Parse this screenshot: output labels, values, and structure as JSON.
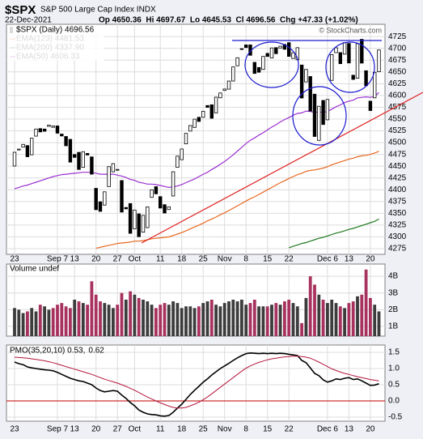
{
  "header": {
    "symbol": "$SPX",
    "name": "S&P 500 Large Cap Index INDX",
    "date": "22-Dec-2021",
    "quote": "Op 4650.36  Hi 4697.67  Lo 4645.53  Cl 4696.56  Chg +47.33 (+1.02%)",
    "copyright": "© StockCharts.com"
  },
  "chart_data": {
    "type": "candlestick",
    "legend": "$SPX (Daily) 4696.56",
    "color": "#000000",
    "grid": true,
    "categories": [
      "23",
      null,
      null,
      null,
      null,
      null,
      null,
      null,
      null,
      null,
      "Sep 7",
      null,
      null,
      null,
      "13",
      null,
      null,
      null,
      null,
      "20",
      null,
      null,
      null,
      null,
      "27",
      null,
      null,
      null,
      "Oct",
      null,
      null,
      null,
      null,
      null,
      "11",
      null,
      null,
      null,
      null,
      "18",
      null,
      null,
      null,
      null,
      "25",
      null,
      null,
      null,
      null,
      "Nov",
      null,
      null,
      null,
      null,
      "8",
      null,
      null,
      null,
      null,
      "15",
      null,
      null,
      null,
      null,
      "22",
      null,
      null,
      null,
      null,
      null,
      null,
      null,
      null,
      "Dec 6",
      null,
      null,
      null,
      null,
      "13",
      null,
      null,
      null,
      null,
      "20",
      null,
      null
    ],
    "open": [
      4450.29,
      4484.4,
      4490.45,
      4493.75,
      4474.1,
      4513.76,
      4529.75,
      4528.8,
      4534.48,
      4532.42,
      4535.38,
      4518.09,
      4513.02,
      4506.92,
      4474.81,
      4479.33,
      4447.49,
      4477.09,
      4469.74,
      4402.95,
      4374.45,
      4367.43,
      4406.75,
      4438.04,
      4442.24,
      4419.54,
      4362.41,
      4370.67,
      4317.16,
      4348.84,
      4309.87,
      4319.57,
      4383.73,
      4406.51,
      4385.44,
      4368.31,
      4358.01,
      4386.75,
      4447.69,
      4463.72,
      4497.34,
      4524.42,
      4532.24,
      4553.69,
      4553.69,
      4578.69,
      4580.22,
      4562.84,
      4595.06,
      4610.62,
      4613.34,
      4630.65,
      4662.93,
      4699.26,
      4707.25,
      4707.25,
      4670.26,
      4659.39,
      4655.24,
      4689.3,
      4679.42,
      4701.5,
      4700.72,
      4708.44,
      4712,
      4678.48,
      4675.78,
      4664.63,
      4628.75,
      4640.25,
      4602.82,
      4504.73,
      4589.49,
      4548.37,
      4631.97,
      4690.86,
      4691,
      4687.64,
      4710.3,
      4642.99,
      4636.46,
      4719.13,
      4652.5,
      4587.9,
      4594.96,
      4650.36
    ],
    "close": [
      4479.53,
      4486.23,
      4496.19,
      4470,
      4509.37,
      4528.79,
      4522.68,
      4524.09,
      4536.95,
      4535.43,
      4520.03,
      4514.07,
      4493.28,
      4458.58,
      4468.73,
      4443.05,
      4480.7,
      4473.75,
      4432.99,
      4357.73,
      4354.19,
      4395.64,
      4448.98,
      4455.48,
      4443.11,
      4352.63,
      4359.46,
      4307.54,
      4357.04,
      4300.46,
      4345.72,
      4363.55,
      4399.76,
      4391.34,
      4361.19,
      4350.65,
      4363.8,
      4438.26,
      4471.37,
      4486.46,
      4519.63,
      4536.19,
      4549.78,
      4544.9,
      4566.48,
      4574.79,
      4551.68,
      4596.42,
      4605.38,
      4613.67,
      4630.65,
      4660.57,
      4680.06,
      4697.53,
      4701.7,
      4685.25,
      4646.71,
      4649.27,
      4682.85,
      4682.8,
      4700.9,
      4688.67,
      4704.54,
      4697.96,
      4682.94,
      4690.7,
      4701.46,
      4594.62,
      4655.27,
      4567,
      4513.04,
      4577.1,
      4538.43,
      4591.67,
      4686.75,
      4701.21,
      4667.45,
      4712.02,
      4668.97,
      4634.09,
      4709.85,
      4668.67,
      4620.64,
      4568.02,
      4649.23,
      4696.56
    ],
    "ylim": [
      4263,
      4751
    ],
    "yticks": [
      4275,
      4300,
      4325,
      4350,
      4375,
      4400,
      4425,
      4450,
      4475,
      4500,
      4525,
      4550,
      4575,
      4600,
      4625,
      4650,
      4675,
      4700,
      4725
    ],
    "series": [
      {
        "name": "EMA(123) 4481.53",
        "color": "#e8671e",
        "values": [
          null,
          null,
          null,
          null,
          null,
          null,
          null,
          null,
          null,
          null,
          null,
          null,
          null,
          null,
          null,
          null,
          null,
          null,
          null,
          4276,
          4278,
          4280,
          4282,
          4284,
          4286,
          4287,
          4288,
          4289,
          4291,
          4291,
          4292,
          4294,
          4296,
          4297,
          4298,
          4299,
          4300,
          4303,
          4306,
          4309,
          4313,
          4317,
          4321,
          4325,
          4329,
          4334,
          4338,
          4342,
          4347,
          4351,
          4356,
          4361,
          4366,
          4371,
          4376,
          4381,
          4385,
          4390,
          4395,
          4400,
          4405,
          4410,
          4415,
          4419,
          4424,
          4428,
          4432,
          4435,
          4439,
          4441,
          4442,
          4444,
          4446,
          4449,
          4453,
          4456,
          4459,
          4462,
          4465,
          4467,
          4470,
          4472,
          4473,
          4475,
          4478,
          4481.53
        ]
      },
      {
        "name": "EMA(200) 4337.90",
        "color": "#1f7a1f",
        "values": [
          null,
          null,
          null,
          null,
          null,
          null,
          null,
          null,
          null,
          null,
          null,
          null,
          null,
          null,
          null,
          null,
          null,
          null,
          null,
          null,
          null,
          null,
          null,
          null,
          null,
          null,
          null,
          null,
          null,
          null,
          null,
          null,
          null,
          null,
          null,
          null,
          null,
          null,
          null,
          null,
          null,
          null,
          null,
          null,
          null,
          null,
          null,
          null,
          null,
          null,
          null,
          null,
          null,
          null,
          null,
          null,
          null,
          null,
          null,
          null,
          null,
          null,
          null,
          null,
          4277,
          4280,
          4283,
          4286,
          4288,
          4291,
          4294,
          4297,
          4299,
          4302,
          4305,
          4308,
          4310,
          4313,
          4316,
          4318,
          4321,
          4324,
          4327,
          4330,
          4333,
          4337.9
        ]
      },
      {
        "name": "EMA(50) 4606.33",
        "color": "#9b30d0",
        "values": [
          4402,
          4405,
          4408,
          4410,
          4413,
          4416,
          4419,
          4422,
          4425,
          4428,
          4430,
          4432,
          4433,
          4434,
          4435,
          4436,
          4437,
          4437,
          4437,
          4435,
          4433,
          4433,
          4433,
          4433,
          4431,
          4429,
          4426,
          4422,
          4420,
          4416,
          4414,
          4412,
          4412,
          4411,
          4409,
          4407,
          4405,
          4406,
          4408,
          4411,
          4415,
          4419,
          4423,
          4428,
          4433,
          4437,
          4443,
          4448,
          4454,
          4460,
          4467,
          4474,
          4482,
          4490,
          4498,
          4505,
          4510,
          4516,
          4521,
          4527,
          4533,
          4538,
          4544,
          4549,
          4553,
          4558,
          4562,
          4563,
          4567,
          4566,
          4564,
          4565,
          4564,
          4566,
          4571,
          4576,
          4580,
          4585,
          4588,
          4590,
          4595,
          4596,
          4597,
          4596,
          4598,
          4606.33
        ]
      }
    ],
    "volume": {
      "name": "Volume undef",
      "colors": {
        "up": "#3c3c3c",
        "down": "#a8325e"
      },
      "values": [
        2.1,
        2.0,
        1.8,
        1.9,
        2.1,
        1.9,
        2.3,
        2.2,
        2.0,
        2.1,
        2.3,
        2.4,
        2.2,
        2.1,
        2.6,
        2.5,
        2.4,
        2.3,
        3.7,
        2.9,
        2.5,
        2.4,
        2.3,
        2.1,
        2.3,
        3.0,
        2.6,
        3.1,
        2.9,
        2.7,
        2.6,
        2.5,
        2.3,
        2.1,
        2.3,
        2.4,
        2.3,
        2.5,
        2.4,
        2.1,
        2.2,
        2.2,
        2.1,
        2.2,
        2.4,
        2.5,
        2.6,
        2.3,
        2.2,
        2.4,
        2.5,
        2.6,
        2.5,
        2.6,
        2.3,
        2.4,
        2.6,
        2.2,
        2.2,
        2.2,
        2.3,
        2.4,
        2.3,
        2.5,
        2.6,
        2.4,
        2.2,
        1.2,
        2.7,
        4.0,
        3.5,
        2.9,
        2.6,
        2.4,
        2.6,
        2.4,
        2.2,
        2.1,
        2.4,
        2.5,
        2.8,
        2.9,
        4.4,
        2.7,
        2.3,
        1.9
      ],
      "ylim": [
        0.42,
        4.73
      ],
      "yticks": [
        {
          "value": 1,
          "label": "1B"
        },
        {
          "value": 2,
          "label": "2B"
        },
        {
          "value": 3,
          "label": "3B"
        },
        {
          "value": 4,
          "label": "4B"
        }
      ]
    },
    "pmo": {
      "ylim": [
        -0.625,
        1.725
      ],
      "yticks": [
        -0.5,
        {
          "value": 0,
          "label": "0.0"
        },
        0.5,
        {
          "value": 1,
          "label": "1.0"
        },
        1.5
      ],
      "series": [
        {
          "name": "PMO(35,20,10) 0.53,",
          "color": "#000000",
          "values": [
            1.2,
            1.15,
            1.12,
            1.05,
            1.02,
            1.0,
            0.98,
            0.96,
            0.95,
            0.93,
            0.88,
            0.82,
            0.76,
            0.7,
            0.66,
            0.62,
            0.6,
            0.55,
            0.5,
            0.4,
            0.32,
            0.28,
            0.3,
            0.32,
            0.3,
            0.18,
            0.08,
            -0.05,
            -0.15,
            -0.28,
            -0.35,
            -0.4,
            -0.42,
            -0.43,
            -0.46,
            -0.47,
            -0.45,
            -0.35,
            -0.22,
            -0.1,
            0.05,
            0.2,
            0.33,
            0.45,
            0.58,
            0.68,
            0.8,
            0.9,
            1.0,
            1.08,
            1.16,
            1.25,
            1.33,
            1.4,
            1.46,
            1.48,
            1.47,
            1.46,
            1.47,
            1.46,
            1.47,
            1.46,
            1.47,
            1.46,
            1.44,
            1.42,
            1.4,
            1.25,
            1.18,
            1.02,
            0.85,
            0.78,
            0.65,
            0.58,
            0.62,
            0.68,
            0.66,
            0.7,
            0.72,
            0.66,
            0.68,
            0.62,
            0.55,
            0.48,
            0.49,
            0.53
          ]
        },
        {
          "name": "0.62",
          "color": "#b3163c",
          "values": [
            1.35,
            1.34,
            1.33,
            1.32,
            1.3,
            1.28,
            1.26,
            1.24,
            1.21,
            1.18,
            1.14,
            1.1,
            1.06,
            1.02,
            0.98,
            0.94,
            0.9,
            0.86,
            0.82,
            0.77,
            0.72,
            0.67,
            0.63,
            0.59,
            0.55,
            0.5,
            0.45,
            0.39,
            0.33,
            0.26,
            0.19,
            0.12,
            0.06,
            0.0,
            -0.06,
            -0.11,
            -0.16,
            -0.2,
            -0.22,
            -0.22,
            -0.2,
            -0.15,
            -0.1,
            -0.04,
            0.04,
            0.12,
            0.22,
            0.32,
            0.42,
            0.52,
            0.62,
            0.72,
            0.82,
            0.92,
            1.01,
            1.08,
            1.14,
            1.19,
            1.23,
            1.27,
            1.3,
            1.32,
            1.34,
            1.36,
            1.37,
            1.38,
            1.38,
            1.37,
            1.35,
            1.32,
            1.26,
            1.2,
            1.13,
            1.06,
            0.99,
            0.94,
            0.89,
            0.85,
            0.82,
            0.78,
            0.75,
            0.72,
            0.69,
            0.66,
            0.64,
            0.62
          ]
        }
      ]
    }
  }
}
